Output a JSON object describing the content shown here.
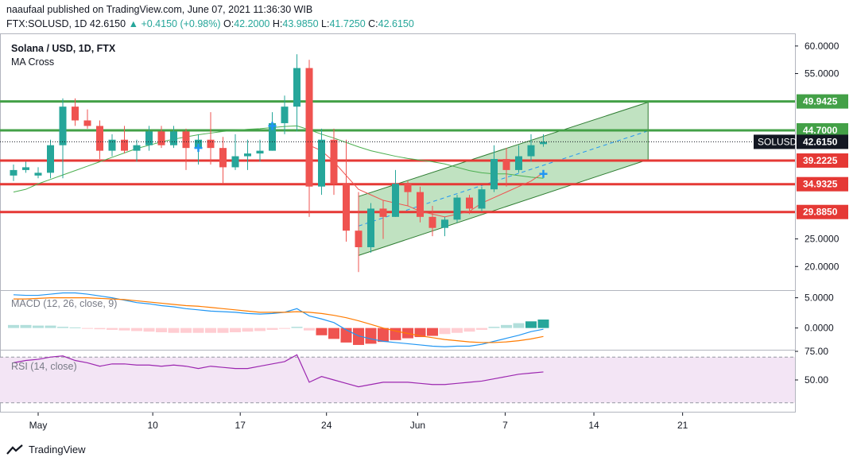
{
  "header": {
    "publisher": "naaufaal published on TradingView.com, June 07, 2021 11:36:30 WIB",
    "symbol_line": "FTX:SOLUSD, 1D",
    "last": "42.6150",
    "change": "+0.4150 (+0.98%)",
    "o_label": "O:",
    "o": "42.2000",
    "h_label": "H:",
    "h": "43.9850",
    "l_label": "L:",
    "l": "41.7250",
    "c_label": "C:",
    "c": "42.6150"
  },
  "footer": {
    "brand": "TradingView"
  },
  "colors": {
    "bull": "#26a69a",
    "bear": "#ef5350",
    "support": "#e53935",
    "resistance": "#43a047",
    "channel_fill": "#a5d6a7",
    "ma_fast": "#ef5350",
    "ma_slow": "#4caf50",
    "macd": "#2196f3",
    "signal": "#ff7b00",
    "rsi": "#9c27b0",
    "rsi_band": "#f3e5f5"
  },
  "chart_data": [
    {
      "type": "candlestick",
      "title": "Solana / USD, 1D, FTX",
      "indicator": "MA Cross",
      "ylim": [
        16,
        62
      ],
      "y_ticks": [
        "60.0000",
        "55.0000",
        "25.0000",
        "20.0000"
      ],
      "x_ticks": [
        "May",
        "10",
        "17",
        "24",
        "Jun",
        "7",
        "14",
        "21"
      ],
      "candles": [
        {
          "o": 36.5,
          "h": 38.5,
          "l": 35.5,
          "c": 37.5
        },
        {
          "o": 37.5,
          "h": 39.0,
          "l": 37.0,
          "c": 38.0
        },
        {
          "o": 36.5,
          "h": 38.0,
          "l": 36.0,
          "c": 37.0
        },
        {
          "o": 37.0,
          "h": 43.0,
          "l": 36.0,
          "c": 42.0
        },
        {
          "o": 42.0,
          "h": 50.5,
          "l": 36.0,
          "c": 49.0
        },
        {
          "o": 49.0,
          "h": 50.5,
          "l": 45.5,
          "c": 46.5
        },
        {
          "o": 46.5,
          "h": 48.5,
          "l": 45.0,
          "c": 45.5
        },
        {
          "o": 45.5,
          "h": 46.5,
          "l": 39.5,
          "c": 41.0
        },
        {
          "o": 41.0,
          "h": 44.0,
          "l": 40.0,
          "c": 43.0
        },
        {
          "o": 43.0,
          "h": 45.5,
          "l": 40.5,
          "c": 41.0
        },
        {
          "o": 41.0,
          "h": 43.0,
          "l": 39.0,
          "c": 42.0
        },
        {
          "o": 42.0,
          "h": 45.5,
          "l": 41.0,
          "c": 44.5
        },
        {
          "o": 44.5,
          "h": 45.5,
          "l": 41.5,
          "c": 42.0
        },
        {
          "o": 42.0,
          "h": 45.5,
          "l": 41.5,
          "c": 44.5
        },
        {
          "o": 44.5,
          "h": 45.0,
          "l": 37.5,
          "c": 41.5
        },
        {
          "o": 41.5,
          "h": 44.0,
          "l": 38.5,
          "c": 43.0
        },
        {
          "o": 43.0,
          "h": 48.0,
          "l": 38.5,
          "c": 41.5
        },
        {
          "o": 41.5,
          "h": 43.5,
          "l": 35.0,
          "c": 38.0
        },
        {
          "o": 38.0,
          "h": 44.0,
          "l": 37.5,
          "c": 40.0
        },
        {
          "o": 40.0,
          "h": 43.0,
          "l": 37.5,
          "c": 40.5
        },
        {
          "o": 40.5,
          "h": 43.0,
          "l": 39.0,
          "c": 41.0
        },
        {
          "o": 41.0,
          "h": 48.0,
          "l": 41.0,
          "c": 46.0
        },
        {
          "o": 46.0,
          "h": 51.0,
          "l": 44.0,
          "c": 49.0
        },
        {
          "o": 49.0,
          "h": 58.5,
          "l": 44.5,
          "c": 56.0
        },
        {
          "o": 56.0,
          "h": 57.5,
          "l": 29.0,
          "c": 34.5
        },
        {
          "o": 34.5,
          "h": 45.0,
          "l": 33.0,
          "c": 43.0
        },
        {
          "o": 43.0,
          "h": 45.0,
          "l": 33.0,
          "c": 35.0
        },
        {
          "o": 35.0,
          "h": 43.0,
          "l": 24.5,
          "c": 26.5
        },
        {
          "o": 26.5,
          "h": 33.5,
          "l": 19.0,
          "c": 23.5
        },
        {
          "o": 23.5,
          "h": 31.5,
          "l": 22.5,
          "c": 30.5
        },
        {
          "o": 30.5,
          "h": 32.0,
          "l": 25.0,
          "c": 29.0
        },
        {
          "o": 29.0,
          "h": 37.5,
          "l": 29.0,
          "c": 35.0
        },
        {
          "o": 35.0,
          "h": 35.5,
          "l": 31.0,
          "c": 33.5
        },
        {
          "o": 33.5,
          "h": 34.5,
          "l": 28.0,
          "c": 29.0
        },
        {
          "o": 29.0,
          "h": 31.0,
          "l": 25.5,
          "c": 27.0
        },
        {
          "o": 27.0,
          "h": 29.0,
          "l": 25.5,
          "c": 28.5
        },
        {
          "o": 28.5,
          "h": 33.0,
          "l": 28.0,
          "c": 32.5
        },
        {
          "o": 32.5,
          "h": 33.0,
          "l": 29.5,
          "c": 30.5
        },
        {
          "o": 30.5,
          "h": 34.5,
          "l": 30.0,
          "c": 34.0
        },
        {
          "o": 34.0,
          "h": 42.0,
          "l": 33.5,
          "c": 39.5
        },
        {
          "o": 39.5,
          "h": 41.5,
          "l": 34.5,
          "c": 37.5
        },
        {
          "o": 37.5,
          "h": 42.0,
          "l": 37.0,
          "c": 40.0
        },
        {
          "o": 40.0,
          "h": 44.0,
          "l": 39.0,
          "c": 42.0
        },
        {
          "o": 42.2,
          "h": 43.985,
          "l": 41.725,
          "c": 42.615
        }
      ],
      "ma_fast": [
        null,
        null,
        null,
        null,
        null,
        null,
        null,
        null,
        null,
        null,
        null,
        null,
        null,
        null,
        null,
        null,
        null,
        null,
        null,
        null,
        null,
        null,
        null,
        null,
        42.0,
        41.0,
        39.0,
        36.5,
        34.0,
        33.0,
        32.0,
        31.5,
        31.0,
        30.0,
        29.5,
        29.0,
        29.5,
        30.0,
        31.5,
        32.5,
        33.5,
        34.5,
        35.5,
        37.0
      ],
      "ma_slow": [
        33.5,
        34.0,
        35.0,
        35.8,
        36.6,
        37.4,
        38.2,
        39.0,
        39.8,
        40.6,
        41.4,
        42.0,
        42.6,
        43.1,
        43.5,
        43.9,
        44.2,
        44.5,
        44.7,
        44.9,
        45.0,
        45.2,
        45.4,
        45.5,
        44.8,
        44.0,
        43.3,
        42.5,
        41.7,
        41.0,
        40.5,
        40.0,
        39.6,
        39.3,
        39.0,
        38.6,
        38.0,
        37.4,
        37.0,
        36.8,
        36.8,
        36.5,
        36.2,
        36.0
      ],
      "cross_markers": [
        {
          "i": 15,
          "v": 41.5
        },
        {
          "i": 21,
          "v": 45.5
        },
        {
          "i": 43,
          "v": 36.8
        }
      ],
      "horizontal_levels": [
        {
          "label": "49.9425",
          "value": 49.9425,
          "kind": "resistance"
        },
        {
          "label": "44.7000",
          "value": 44.7,
          "kind": "resistance"
        },
        {
          "label": "39.2225",
          "value": 39.2225,
          "kind": "support"
        },
        {
          "label": "34.9325",
          "value": 34.9325,
          "kind": "support"
        },
        {
          "label": "29.8850",
          "value": 29.885,
          "kind": "support"
        }
      ],
      "current_price": {
        "label": "SOLUSD",
        "value": "42.6150"
      },
      "channel": {
        "start_index": 28,
        "end_index": 51.5,
        "lower_start": 22.0,
        "lower_end": 39.4,
        "upper_start": 32.7,
        "upper_end": 49.8
      }
    },
    {
      "type": "histogram+line",
      "title": "MACD (12, 26, close, 9)",
      "ylim": [
        -3.2,
        6.0
      ],
      "y_ticks": [
        "5.0000",
        "0.0000"
      ],
      "histogram": [
        0.5,
        0.5,
        0.4,
        0.4,
        0.2,
        0.1,
        -0.1,
        -0.2,
        -0.3,
        -0.4,
        -0.5,
        -0.6,
        -0.7,
        -0.8,
        -0.8,
        -0.8,
        -0.8,
        -0.8,
        -0.7,
        -0.6,
        -0.5,
        -0.3,
        -0.1,
        0.2,
        -0.4,
        -1.2,
        -1.8,
        -2.4,
        -2.8,
        -2.6,
        -2.3,
        -2.0,
        -1.7,
        -1.5,
        -1.3,
        -1.0,
        -0.8,
        -0.6,
        -0.3,
        0.2,
        0.5,
        0.8,
        1.1,
        1.4
      ],
      "macd": [
        5.5,
        5.4,
        5.4,
        5.6,
        5.8,
        5.8,
        5.6,
        5.3,
        5.0,
        4.6,
        4.2,
        4.0,
        3.7,
        3.5,
        3.2,
        3.0,
        2.8,
        2.7,
        2.6,
        2.4,
        2.3,
        2.4,
        2.6,
        3.2,
        2.0,
        1.5,
        0.9,
        -0.3,
        -1.3,
        -1.8,
        -2.2,
        -2.4,
        -2.6,
        -2.8,
        -3.0,
        -3.1,
        -3.0,
        -3.0,
        -2.7,
        -2.2,
        -1.7,
        -1.2,
        -0.6,
        -0.2
      ],
      "signal": [
        4.8,
        4.8,
        4.9,
        5.0,
        5.0,
        5.0,
        5.0,
        4.9,
        4.8,
        4.7,
        4.5,
        4.3,
        4.1,
        3.9,
        3.7,
        3.6,
        3.4,
        3.2,
        3.0,
        2.8,
        2.6,
        2.6,
        2.6,
        2.7,
        2.6,
        2.4,
        2.1,
        1.7,
        1.2,
        0.6,
        0.0,
        -0.5,
        -0.9,
        -1.3,
        -1.6,
        -1.9,
        -2.1,
        -2.3,
        -2.4,
        -2.4,
        -2.3,
        -2.1,
        -1.8,
        -1.4
      ]
    },
    {
      "type": "line",
      "title": "RSI (14, close)",
      "ylim": [
        25,
        75
      ],
      "y_ticks": [
        "75.00",
        "50.00"
      ],
      "band": [
        30,
        70
      ],
      "values": [
        65,
        67,
        68,
        70,
        71,
        67,
        65,
        62,
        64,
        64,
        63,
        63,
        62,
        63,
        62,
        60,
        62,
        61,
        60,
        60,
        62,
        64,
        66,
        72,
        48,
        53,
        50,
        47,
        44,
        46,
        48,
        48,
        48,
        47,
        46,
        46,
        47,
        48,
        49,
        51,
        53,
        55,
        56,
        57
      ]
    }
  ]
}
